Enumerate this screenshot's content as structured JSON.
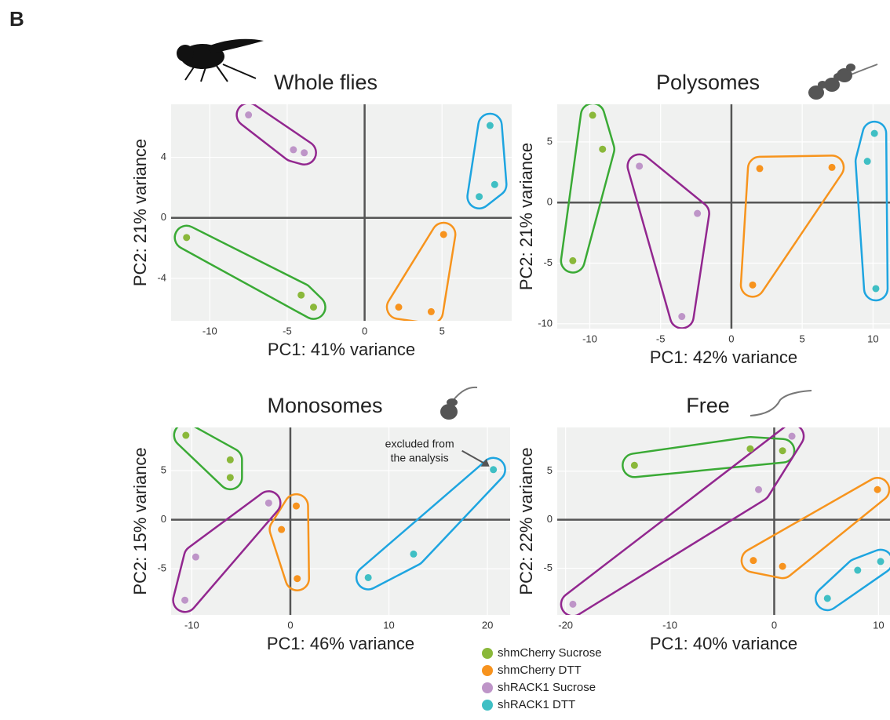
{
  "panel_label": "B",
  "chart_data": [
    {
      "type": "scatter",
      "title": "Whole flies",
      "xlabel": "PC1: 41% variance",
      "ylabel": "PC2: 21% variance",
      "xlim": [
        -12.5,
        9.5
      ],
      "ylim": [
        -6.8,
        7.5
      ],
      "xticks": [
        -10,
        -5,
        0,
        5
      ],
      "yticks": [
        -4,
        0,
        4
      ],
      "grid": true,
      "zero_lines": true,
      "series": [
        {
          "color": "#8ab83a",
          "outline_color": "#3aaa35",
          "x": [
            -11.5,
            -4.1,
            -3.3
          ],
          "values": [
            -1.3,
            -5.1,
            -5.9
          ]
        },
        {
          "color": "#f7931e",
          "outline_color": "#f7941d",
          "x": [
            5.1,
            2.2,
            4.3
          ],
          "values": [
            -1.1,
            -5.9,
            -6.2
          ]
        },
        {
          "color": "#be95c8",
          "outline_color": "#92278f",
          "x": [
            -7.5,
            -4.6,
            -3.9
          ],
          "values": [
            6.8,
            4.5,
            4.3
          ]
        },
        {
          "color": "#3fbfc4",
          "outline_color": "#1ea5e0",
          "x": [
            8.1,
            8.4,
            7.4
          ],
          "values": [
            6.1,
            2.2,
            1.4
          ]
        }
      ]
    },
    {
      "type": "scatter",
      "title": "Polysomes",
      "xlabel": "PC1: 42% variance",
      "ylabel": "PC2: 21% variance",
      "xlim": [
        -12.3,
        11.2
      ],
      "ylim": [
        -10.4,
        8.1
      ],
      "xticks": [
        -10,
        -5,
        0,
        5,
        10
      ],
      "yticks": [
        -10,
        -5,
        0,
        5
      ],
      "grid": true,
      "zero_lines": true,
      "series": [
        {
          "color": "#8ab83a",
          "outline_color": "#3aaa35",
          "x": [
            -9.8,
            -9.1,
            -11.2
          ],
          "values": [
            7.2,
            4.4,
            -4.8
          ]
        },
        {
          "color": "#f7931e",
          "outline_color": "#f7941d",
          "x": [
            2.0,
            7.1,
            1.5
          ],
          "values": [
            2.8,
            2.9,
            -6.8
          ]
        },
        {
          "color": "#be95c8",
          "outline_color": "#92278f",
          "x": [
            -6.5,
            -2.4,
            -3.5
          ],
          "values": [
            3.0,
            -0.9,
            -9.4
          ]
        },
        {
          "color": "#3fbfc4",
          "outline_color": "#1ea5e0",
          "x": [
            10.1,
            9.6,
            10.2
          ],
          "values": [
            5.7,
            3.4,
            -7.1
          ]
        }
      ]
    },
    {
      "type": "scatter",
      "title": "Monosomes",
      "xlabel": "PC1: 46% variance",
      "ylabel": "PC2: 15% variance",
      "xlim": [
        -12.1,
        22.3
      ],
      "ylim": [
        -9.7,
        9.4
      ],
      "xticks": [
        -10,
        0,
        10,
        20
      ],
      "yticks": [
        -5,
        0,
        5
      ],
      "grid": true,
      "zero_lines": true,
      "annotation": [
        "excluded from",
        "the analysis"
      ],
      "series": [
        {
          "color": "#8ab83a",
          "outline_color": "#3aaa35",
          "x": [
            -10.6,
            -6.1,
            -6.1
          ],
          "values": [
            8.6,
            6.1,
            4.3
          ]
        },
        {
          "color": "#f7931e",
          "outline_color": "#f7941d",
          "x": [
            0.6,
            -0.9,
            0.7
          ],
          "values": [
            1.4,
            -1.0,
            -6.0
          ]
        },
        {
          "color": "#be95c8",
          "outline_color": "#92278f",
          "x": [
            -2.2,
            -9.6,
            -10.7
          ],
          "values": [
            1.7,
            -3.8,
            -8.2
          ]
        },
        {
          "color": "#3fbfc4",
          "outline_color": "#1ea5e0",
          "x": [
            20.6,
            12.5,
            7.9
          ],
          "values": [
            5.1,
            -3.5,
            -5.9
          ]
        }
      ]
    },
    {
      "type": "scatter",
      "title": "Free",
      "xlabel": "PC1: 40% variance",
      "ylabel": "PC2: 22% variance",
      "xlim": [
        -20.8,
        11.1
      ],
      "ylim": [
        -9.8,
        9.5
      ],
      "xticks": [
        -20,
        -10,
        0,
        10
      ],
      "yticks": [
        -5,
        0,
        5
      ],
      "grid": true,
      "zero_lines": true,
      "series": [
        {
          "color": "#8ab83a",
          "outline_color": "#3aaa35",
          "x": [
            -13.4,
            -2.3,
            0.8
          ],
          "values": [
            5.6,
            7.3,
            7.1
          ]
        },
        {
          "color": "#f7931e",
          "outline_color": "#f7941d",
          "x": [
            9.9,
            -2.0,
            0.8
          ],
          "values": [
            3.1,
            -4.2,
            -4.8
          ]
        },
        {
          "color": "#be95c8",
          "outline_color": "#92278f",
          "x": [
            1.7,
            -1.5,
            -19.3
          ],
          "values": [
            8.6,
            3.1,
            -8.7
          ]
        },
        {
          "color": "#3fbfc4",
          "outline_color": "#1ea5e0",
          "x": [
            10.2,
            8.0,
            5.1
          ],
          "values": [
            -4.3,
            -5.2,
            -8.1
          ]
        }
      ]
    }
  ],
  "legend": [
    {
      "name": "shmCherry Sucrose",
      "color": "#8ab83a"
    },
    {
      "name": "shmCherry DTT",
      "color": "#f7931e"
    },
    {
      "name": "shRACK1 Sucrose",
      "color": "#be95c8"
    },
    {
      "name": "shRACK1 DTT",
      "color": "#3fbfc4"
    }
  ]
}
